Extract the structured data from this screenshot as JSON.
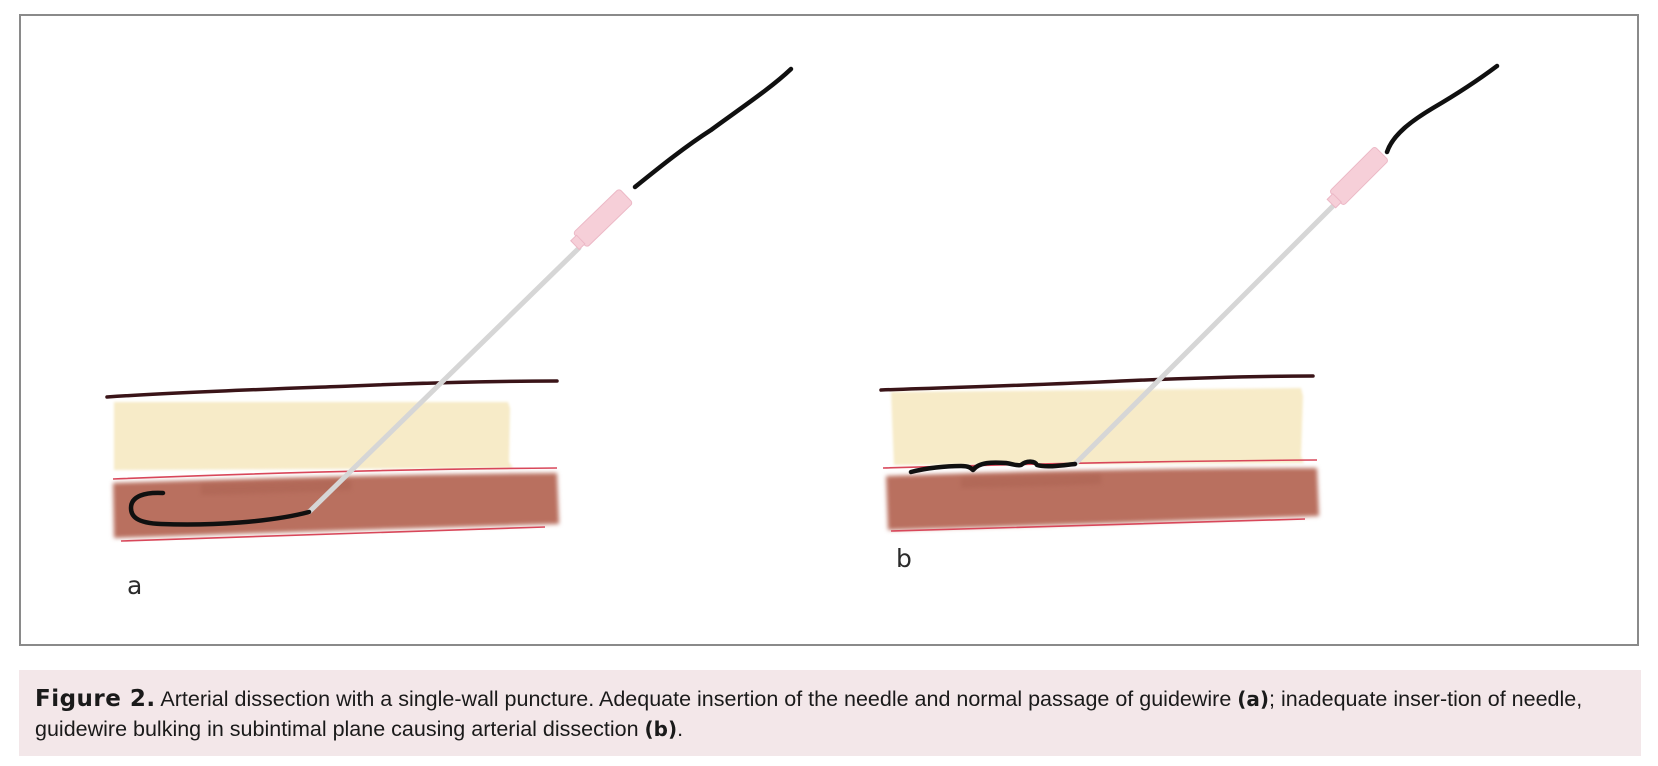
{
  "figure": {
    "panels": [
      {
        "label": "a"
      },
      {
        "label": "b"
      }
    ]
  },
  "caption": {
    "title": "Figure 2.",
    "text_1": " Arterial dissection with a single-wall puncture. Adequate insertion of the needle and normal passage of guidewire ",
    "ref_a": "(a)",
    "text_2": "; inadequate inser-tion of needle, guidewire bulking in subintimal plane causing arterial dissection ",
    "ref_b": "(b)",
    "text_3": "."
  },
  "colors": {
    "skin_line": "#3a1418",
    "subcutaneous_fat": "#f7ebc8",
    "artery_wall": "#b9705f",
    "artery_edge": "#d8475a",
    "needle": "#d6d6d6",
    "needle_hub": "#f6cfd8",
    "guidewire": "#101010",
    "caption_background": "#f3e7e9"
  }
}
